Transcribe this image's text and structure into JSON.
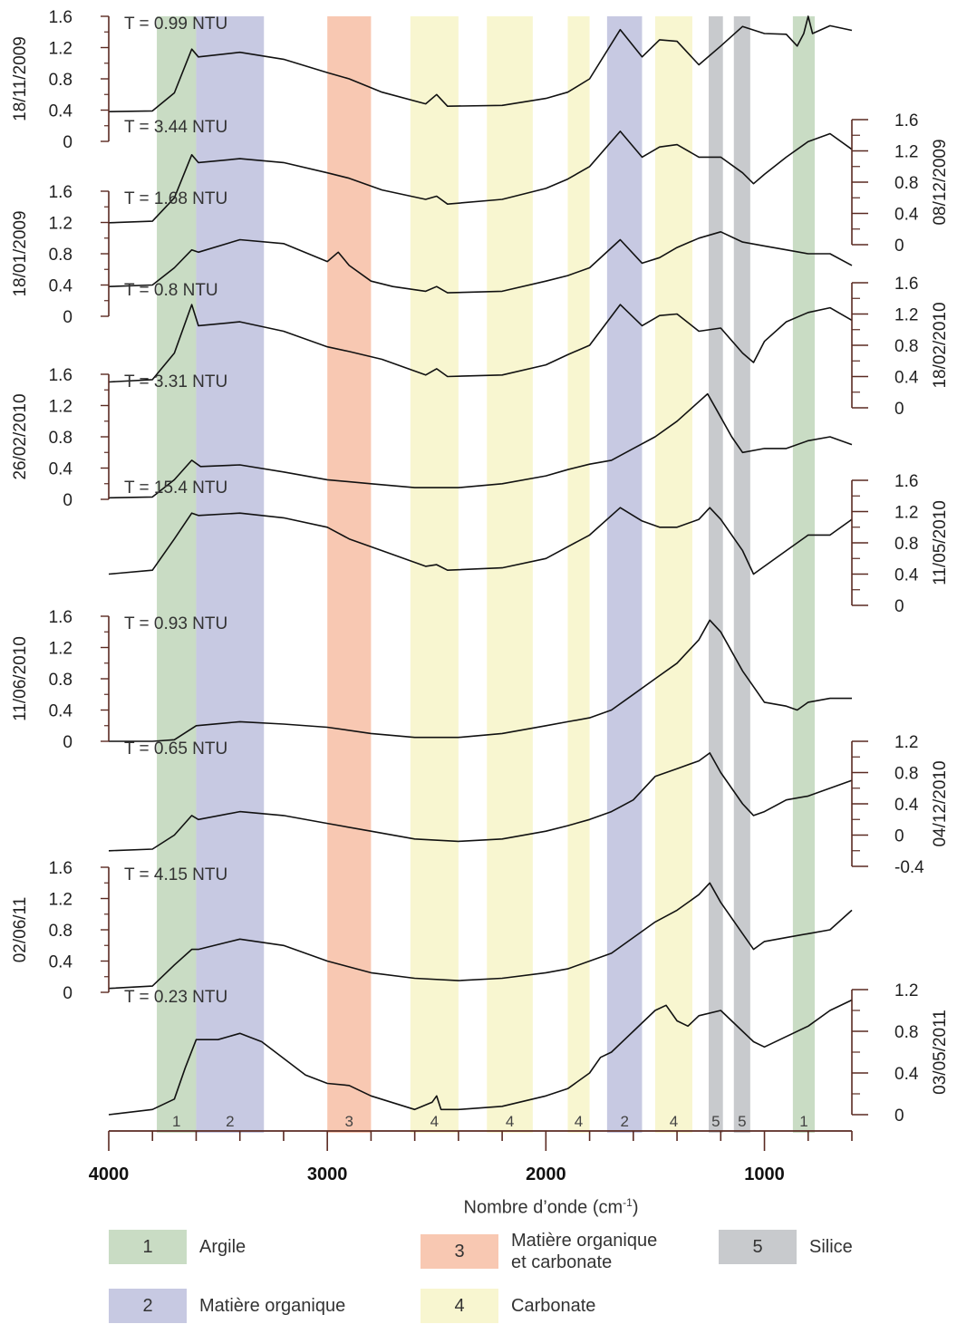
{
  "chart_data": {
    "type": "line",
    "xlabel": "Nombre d’onde (cm",
    "xlabel_sup": "-1",
    "xlabel_close": ")",
    "x_ticks": [
      "4000",
      "3000",
      "2000",
      "1000"
    ],
    "xlim": [
      4000,
      600
    ],
    "bands": [
      {
        "id": "1",
        "from": 3780,
        "to": 3600,
        "color": "#c9dcc4"
      },
      {
        "id": "2",
        "from": 3600,
        "to": 3290,
        "color": "#c7c9e2"
      },
      {
        "id": "3",
        "from": 3000,
        "to": 2800,
        "color": "#f8c8b2"
      },
      {
        "id": "4",
        "from": 2620,
        "to": 2400,
        "color": "#f8f6d0"
      },
      {
        "id": "4",
        "from": 2270,
        "to": 2060,
        "color": "#f8f6d0"
      },
      {
        "id": "4",
        "from": 1900,
        "to": 1800,
        "color": "#f8f6d0"
      },
      {
        "id": "2",
        "from": 1720,
        "to": 1560,
        "color": "#c7c9e2"
      },
      {
        "id": "4",
        "from": 1500,
        "to": 1330,
        "color": "#f8f6d0"
      },
      {
        "id": "5",
        "from": 1255,
        "to": 1190,
        "color": "#c8cacd"
      },
      {
        "id": "5",
        "from": 1140,
        "to": 1065,
        "color": "#c8cacd"
      },
      {
        "id": "1",
        "from": 870,
        "to": 770,
        "color": "#c9dcc4"
      }
    ],
    "series": [
      {
        "name": "18/11/2009",
        "turbidity": "T = 0.99 NTU",
        "axis_side": "left",
        "ticks": [
          "1.6",
          "1.2",
          "0.8",
          "0.4",
          "0"
        ],
        "ylim": [
          0,
          1.6
        ],
        "x": [
          4000,
          3800,
          3700,
          3620,
          3590,
          3400,
          3200,
          3000,
          2900,
          2750,
          2550,
          2500,
          2450,
          2200,
          2000,
          1900,
          1800,
          1660,
          1560,
          1480,
          1400,
          1300,
          1200,
          1100,
          1000,
          900,
          850,
          820,
          800,
          780,
          700,
          600
        ],
        "y": [
          0.38,
          0.39,
          0.62,
          1.18,
          1.08,
          1.14,
          1.05,
          0.88,
          0.8,
          0.63,
          0.48,
          0.6,
          0.45,
          0.46,
          0.55,
          0.63,
          0.8,
          1.43,
          1.08,
          1.3,
          1.28,
          0.98,
          1.22,
          1.47,
          1.38,
          1.37,
          1.22,
          1.38,
          1.6,
          1.38,
          1.48,
          1.42
        ]
      },
      {
        "name": "08/12/2009",
        "turbidity": "T = 3.44 NTU",
        "axis_side": "right",
        "ticks": [
          "1.6",
          "1.2",
          "0.8",
          "0.4",
          "0"
        ],
        "ylim": [
          0,
          1.6
        ],
        "x": [
          4000,
          3800,
          3700,
          3620,
          3590,
          3400,
          3200,
          3000,
          2900,
          2750,
          2550,
          2500,
          2450,
          2200,
          2000,
          1900,
          1800,
          1660,
          1560,
          1480,
          1400,
          1300,
          1200,
          1100,
          1050,
          1000,
          900,
          800,
          700,
          600
        ],
        "y": [
          0.28,
          0.3,
          0.6,
          1.15,
          1.05,
          1.1,
          1.05,
          0.92,
          0.85,
          0.7,
          0.58,
          0.62,
          0.52,
          0.58,
          0.72,
          0.84,
          1.0,
          1.45,
          1.12,
          1.25,
          1.28,
          1.12,
          1.12,
          0.92,
          0.78,
          0.9,
          1.12,
          1.32,
          1.42,
          1.22
        ]
      },
      {
        "name": "18/01/2009",
        "turbidity": "T = 1.68 NTU",
        "axis_side": "left",
        "ticks": [
          "1.6",
          "1.2",
          "0.8",
          "0.4",
          "0"
        ],
        "ylim": [
          0,
          1.6
        ],
        "x": [
          4000,
          3800,
          3700,
          3620,
          3590,
          3400,
          3200,
          3000,
          2950,
          2900,
          2800,
          2700,
          2550,
          2500,
          2450,
          2200,
          2000,
          1900,
          1800,
          1660,
          1560,
          1480,
          1400,
          1300,
          1200,
          1100,
          1000,
          900,
          800,
          700,
          600
        ],
        "y": [
          0.38,
          0.4,
          0.62,
          0.85,
          0.82,
          0.98,
          0.93,
          0.7,
          0.82,
          0.65,
          0.45,
          0.38,
          0.32,
          0.38,
          0.3,
          0.32,
          0.45,
          0.52,
          0.62,
          0.98,
          0.68,
          0.75,
          0.88,
          1.0,
          1.08,
          0.95,
          0.9,
          0.85,
          0.8,
          0.8,
          0.65
        ]
      },
      {
        "name": "18/02/2010",
        "turbidity": "T = 0.8 NTU",
        "axis_side": "right",
        "ticks": [
          "1.6",
          "1.2",
          "0.8",
          "0.4",
          "0"
        ],
        "ylim": [
          0,
          1.6
        ],
        "x": [
          4000,
          3800,
          3700,
          3620,
          3590,
          3400,
          3200,
          3000,
          2900,
          2750,
          2550,
          2500,
          2450,
          2200,
          2000,
          1900,
          1800,
          1660,
          1560,
          1480,
          1400,
          1300,
          1200,
          1100,
          1050,
          1000,
          900,
          800,
          700,
          600
        ],
        "y": [
          0.33,
          0.36,
          0.7,
          1.32,
          1.05,
          1.1,
          0.98,
          0.78,
          0.72,
          0.62,
          0.42,
          0.5,
          0.4,
          0.42,
          0.55,
          0.68,
          0.8,
          1.32,
          1.05,
          1.18,
          1.2,
          0.98,
          1.02,
          0.7,
          0.58,
          0.85,
          1.1,
          1.22,
          1.28,
          1.12
        ]
      },
      {
        "name": "26/02/2010",
        "turbidity": "T = 3.31 NTU",
        "axis_side": "left",
        "ticks": [
          "1.6",
          "1.2",
          "0.8",
          "0.4",
          "0"
        ],
        "ylim": [
          0,
          1.6
        ],
        "x": [
          4000,
          3800,
          3700,
          3620,
          3580,
          3400,
          3200,
          3000,
          2800,
          2600,
          2400,
          2200,
          2000,
          1900,
          1800,
          1700,
          1600,
          1500,
          1400,
          1300,
          1260,
          1220,
          1150,
          1100,
          1000,
          900,
          800,
          700,
          600
        ],
        "y": [
          0.02,
          0.03,
          0.25,
          0.5,
          0.42,
          0.44,
          0.35,
          0.25,
          0.2,
          0.15,
          0.15,
          0.2,
          0.3,
          0.38,
          0.45,
          0.5,
          0.65,
          0.8,
          1.0,
          1.25,
          1.35,
          1.15,
          0.8,
          0.6,
          0.65,
          0.65,
          0.75,
          0.8,
          0.7
        ]
      },
      {
        "name": "11/05/2010",
        "turbidity": "T = 15.4 NTU",
        "axis_side": "right",
        "ticks": [
          "1.6",
          "1.2",
          "0.8",
          "0.4",
          "0"
        ],
        "ylim": [
          0,
          1.6
        ],
        "x": [
          4000,
          3800,
          3700,
          3620,
          3590,
          3400,
          3200,
          3000,
          2900,
          2750,
          2550,
          2500,
          2450,
          2200,
          2000,
          1900,
          1800,
          1660,
          1560,
          1480,
          1400,
          1300,
          1250,
          1200,
          1100,
          1050,
          1000,
          900,
          800,
          700,
          600
        ],
        "y": [
          0.4,
          0.45,
          0.85,
          1.18,
          1.15,
          1.18,
          1.12,
          1.0,
          0.85,
          0.7,
          0.5,
          0.52,
          0.45,
          0.48,
          0.6,
          0.75,
          0.9,
          1.25,
          1.08,
          1.0,
          1.0,
          1.1,
          1.25,
          1.1,
          0.7,
          0.4,
          0.5,
          0.7,
          0.9,
          0.9,
          1.1
        ]
      },
      {
        "name": "11/06/2010",
        "turbidity": "T = 0.93 NTU",
        "axis_side": "left",
        "ticks": [
          "1.6",
          "1.2",
          "0.8",
          "0.4",
          "0"
        ],
        "ylim": [
          0,
          1.6
        ],
        "x": [
          4000,
          3800,
          3700,
          3600,
          3400,
          3200,
          3000,
          2800,
          2600,
          2400,
          2200,
          2000,
          1900,
          1800,
          1700,
          1600,
          1500,
          1400,
          1300,
          1250,
          1200,
          1100,
          1000,
          900,
          850,
          800,
          700,
          600
        ],
        "y": [
          0.0,
          0.0,
          0.02,
          0.2,
          0.25,
          0.22,
          0.18,
          0.1,
          0.05,
          0.05,
          0.1,
          0.2,
          0.25,
          0.3,
          0.4,
          0.6,
          0.8,
          1.0,
          1.3,
          1.55,
          1.4,
          0.9,
          0.5,
          0.45,
          0.4,
          0.5,
          0.55,
          0.55
        ]
      },
      {
        "name": "04/12/2010",
        "turbidity": "T = 0.65 NTU",
        "axis_side": "right",
        "ticks": [
          "1.2",
          "0.8",
          "0.4",
          "0",
          "-0.4"
        ],
        "ylim": [
          -0.4,
          1.2
        ],
        "x": [
          4000,
          3800,
          3700,
          3620,
          3590,
          3400,
          3200,
          3000,
          2800,
          2600,
          2400,
          2200,
          2000,
          1900,
          1800,
          1700,
          1600,
          1500,
          1400,
          1300,
          1250,
          1200,
          1100,
          1050,
          1000,
          900,
          800,
          700,
          600
        ],
        "y": [
          -0.2,
          -0.18,
          0.0,
          0.25,
          0.2,
          0.3,
          0.25,
          0.15,
          0.05,
          -0.05,
          -0.08,
          -0.05,
          0.05,
          0.12,
          0.2,
          0.3,
          0.45,
          0.75,
          0.85,
          0.95,
          1.05,
          0.8,
          0.4,
          0.25,
          0.3,
          0.45,
          0.5,
          0.6,
          0.7
        ]
      },
      {
        "name": "02/06/11",
        "turbidity": "T = 4.15 NTU",
        "axis_side": "left",
        "ticks": [
          "1.6",
          "1.2",
          "0.8",
          "0.4",
          "0"
        ],
        "ylim": [
          0,
          1.6
        ],
        "x": [
          4000,
          3800,
          3700,
          3620,
          3590,
          3400,
          3200,
          3000,
          2800,
          2600,
          2400,
          2200,
          2000,
          1900,
          1800,
          1700,
          1600,
          1500,
          1400,
          1300,
          1250,
          1200,
          1100,
          1050,
          1000,
          900,
          800,
          700,
          600
        ],
        "y": [
          0.05,
          0.08,
          0.35,
          0.55,
          0.55,
          0.68,
          0.6,
          0.4,
          0.25,
          0.18,
          0.15,
          0.18,
          0.25,
          0.3,
          0.4,
          0.5,
          0.7,
          0.9,
          1.05,
          1.25,
          1.4,
          1.15,
          0.75,
          0.55,
          0.65,
          0.7,
          0.75,
          0.8,
          1.05
        ]
      },
      {
        "name": "03/05/2011",
        "turbidity": "T = 0.23 NTU",
        "axis_side": "right",
        "ticks": [
          "1.2",
          "0.8",
          "0.4",
          "0"
        ],
        "ylim": [
          0,
          1.2
        ],
        "x": [
          4000,
          3800,
          3700,
          3650,
          3600,
          3500,
          3400,
          3300,
          3100,
          3000,
          2900,
          2800,
          2600,
          2520,
          2500,
          2480,
          2400,
          2200,
          2000,
          1900,
          1800,
          1750,
          1700,
          1600,
          1500,
          1450,
          1400,
          1350,
          1300,
          1200,
          1100,
          1050,
          1000,
          900,
          800,
          700,
          600
        ],
        "y": [
          0.0,
          0.05,
          0.15,
          0.45,
          0.72,
          0.72,
          0.78,
          0.7,
          0.38,
          0.3,
          0.28,
          0.18,
          0.05,
          0.12,
          0.18,
          0.05,
          0.05,
          0.08,
          0.18,
          0.25,
          0.4,
          0.55,
          0.6,
          0.8,
          1.0,
          1.05,
          0.9,
          0.85,
          0.95,
          1.0,
          0.8,
          0.7,
          0.65,
          0.75,
          0.85,
          1.0,
          1.1
        ]
      }
    ]
  },
  "legend": [
    {
      "num": "1",
      "label": "Argile",
      "color": "#c9dcc4"
    },
    {
      "num": "3",
      "label": "Matière organique",
      "label2": "et carbonate",
      "color": "#f8c8b2"
    },
    {
      "num": "5",
      "label": "Silice",
      "color": "#c8cacd"
    },
    {
      "num": "2",
      "label": "Matière organique",
      "color": "#c7c9e2"
    },
    {
      "num": "4",
      "label": "Carbonate",
      "color": "#f8f6d0"
    }
  ]
}
